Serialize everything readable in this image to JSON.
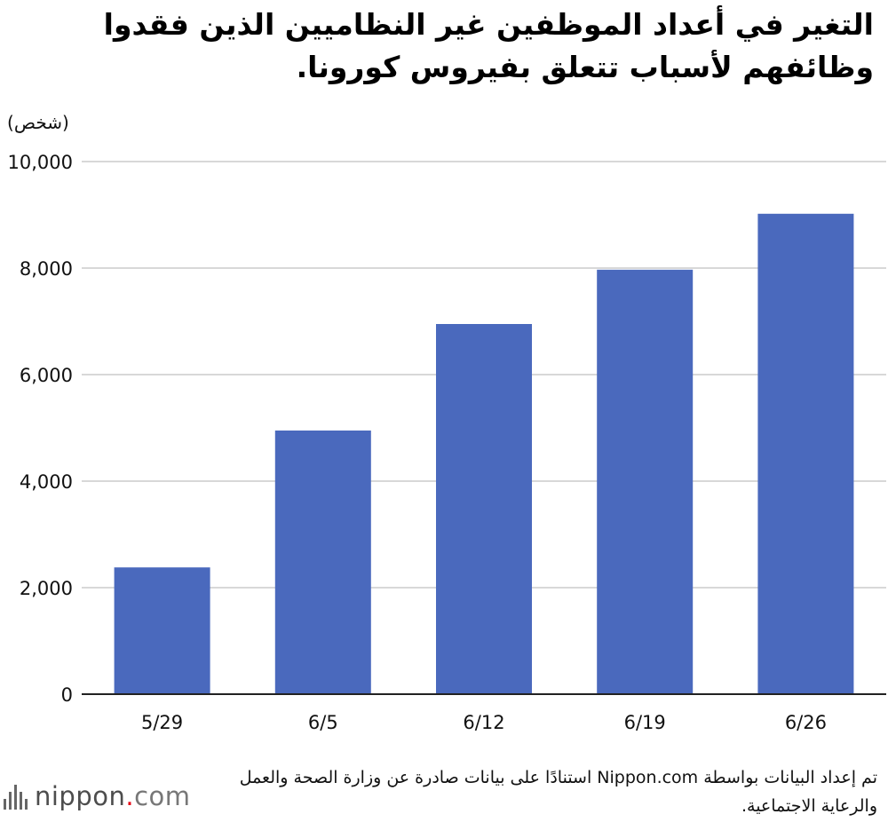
{
  "title": "التغير في أعداد الموظفين غير النظاميين الذين فقدوا وظائفهم لأسباب تتعلق بفيروس كورونا.",
  "footer": {
    "source": "تم إعداد البيانات بواسطة Nippon.com استنادًا على بيانات صادرة عن وزارة الصحة والعمل والرعاية الاجتماعية.",
    "logo": {
      "name": "nippon",
      "dot": ".",
      "suffix": "com"
    }
  },
  "chart_data": {
    "type": "bar",
    "title": "التغير في أعداد الموظفين غير النظاميين الذين فقدوا وظائفهم لأسباب تتعلق بفيروس كورونا.",
    "ylabel": "(شخص)",
    "xlabel": "",
    "categories": [
      "5/29",
      "6/5",
      "6/12",
      "6/19",
      "6/26"
    ],
    "values": [
      2380,
      4950,
      6950,
      7970,
      9020
    ],
    "ylim": [
      0,
      10000
    ],
    "yticks": [
      0,
      2000,
      4000,
      6000,
      8000,
      10000
    ],
    "ytick_labels": [
      "0",
      "2,000",
      "4,000",
      "6,000",
      "8,000",
      "10,000"
    ],
    "grid": true,
    "bar_color": "#4a69bd",
    "grid_color": "#cccccc"
  }
}
